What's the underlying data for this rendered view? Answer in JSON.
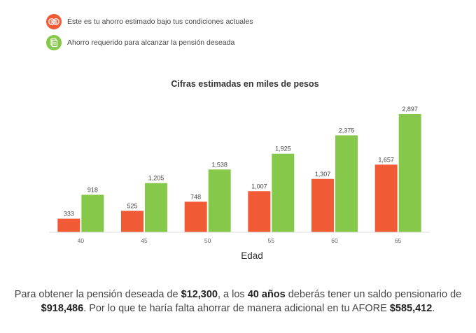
{
  "legend": {
    "current_label": "Éste es tu ahorro estimado bajo tus condiciones actuales",
    "required_label": "Ahorro requerido para alcanzar la pensión deseada"
  },
  "colors": {
    "current": "#f05a35",
    "required": "#86c94a",
    "current_icon_bg": "#f05a35",
    "required_icon_bg": "#86c94a"
  },
  "icons": {
    "current": "coins-icon",
    "required": "money-stack-icon"
  },
  "chart_data": {
    "type": "bar",
    "title": "Cifras estimadas en miles de pesos",
    "xlabel": "Edad",
    "ylabel": "",
    "categories": [
      "40",
      "45",
      "50",
      "55",
      "60",
      "65"
    ],
    "series": [
      {
        "name": "Éste es tu ahorro estimado bajo tus condiciones actuales",
        "values": [
          333,
          525,
          748,
          1007,
          1307,
          1657
        ],
        "labels": [
          "333",
          "525",
          "748",
          "1,007",
          "1,307",
          "1,657"
        ]
      },
      {
        "name": "Ahorro requerido para alcanzar la pensión deseada",
        "values": [
          918,
          1205,
          1538,
          1925,
          2375,
          2897
        ],
        "labels": [
          "918",
          "1,205",
          "1,538",
          "1,925",
          "2,375",
          "2,897"
        ]
      }
    ],
    "ylim": [
      0,
      2897
    ],
    "grid": false,
    "legend_position": "top-left"
  },
  "summary": {
    "p1": "Para obtener la pensión deseada de ",
    "pension": "$12,300",
    "p2": ", a los ",
    "age": "40 años",
    "p3": "  deberás tener un saldo pensionario de ",
    "balance": "$918,486",
    "p4": ". Por lo que te haría falta ahorrar de manera adicional en tu AFORE ",
    "additional": "$585,412",
    "p5": "."
  }
}
